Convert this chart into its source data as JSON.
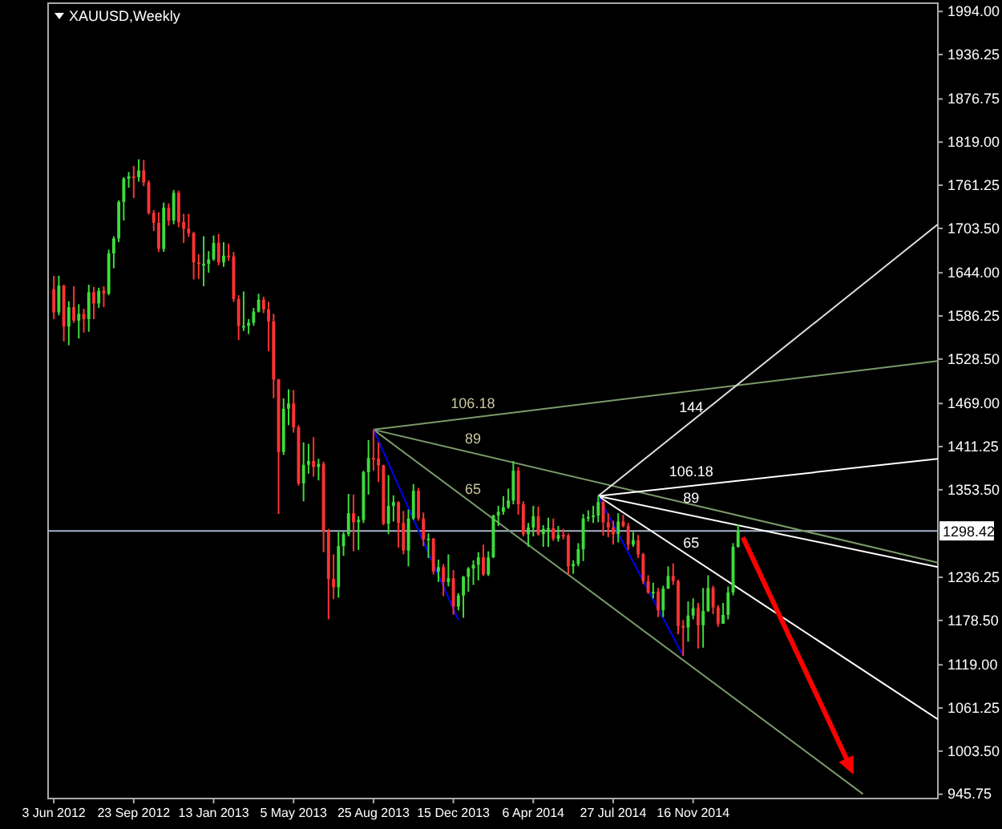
{
  "chart_data": {
    "type": "candlestick",
    "title": "XAUUSD,Weekly",
    "x": [
      "2012-06-03",
      "2012-06-10",
      "2012-06-17",
      "2012-06-24",
      "2012-07-01",
      "2012-07-08",
      "2012-07-15",
      "2012-07-22",
      "2012-07-29",
      "2012-08-05",
      "2012-08-12",
      "2012-08-19",
      "2012-08-26",
      "2012-09-02",
      "2012-09-09",
      "2012-09-16",
      "2012-09-23",
      "2012-09-30",
      "2012-10-07",
      "2012-10-14",
      "2012-10-21",
      "2012-10-28",
      "2012-11-04",
      "2012-11-11",
      "2012-11-18",
      "2012-11-25",
      "2012-12-02",
      "2012-12-09",
      "2012-12-16",
      "2012-12-23",
      "2012-12-30",
      "2013-01-06",
      "2013-01-13",
      "2013-01-20",
      "2013-01-27",
      "2013-02-03",
      "2013-02-10",
      "2013-02-17",
      "2013-02-24",
      "2013-03-03",
      "2013-03-10",
      "2013-03-17",
      "2013-03-24",
      "2013-03-31",
      "2013-04-07",
      "2013-04-14",
      "2013-04-21",
      "2013-04-28",
      "2013-05-05",
      "2013-05-12",
      "2013-05-19",
      "2013-05-26",
      "2013-06-02",
      "2013-06-09",
      "2013-06-16",
      "2013-06-23",
      "2013-06-30",
      "2013-07-07",
      "2013-07-14",
      "2013-07-21",
      "2013-07-28",
      "2013-08-04",
      "2013-08-11",
      "2013-08-18",
      "2013-08-25",
      "2013-09-01",
      "2013-09-08",
      "2013-09-15",
      "2013-09-22",
      "2013-09-29",
      "2013-10-06",
      "2013-10-13",
      "2013-10-20",
      "2013-10-27",
      "2013-11-03",
      "2013-11-10",
      "2013-11-17",
      "2013-11-24",
      "2013-12-01",
      "2013-12-08",
      "2013-12-15",
      "2013-12-22",
      "2013-12-29",
      "2014-01-05",
      "2014-01-12",
      "2014-01-19",
      "2014-01-26",
      "2014-02-02",
      "2014-02-09",
      "2014-02-16",
      "2014-02-23",
      "2014-03-02",
      "2014-03-09",
      "2014-03-16",
      "2014-03-23",
      "2014-03-30",
      "2014-04-06",
      "2014-04-13",
      "2014-04-20",
      "2014-04-27",
      "2014-05-04",
      "2014-05-11",
      "2014-05-18",
      "2014-05-25",
      "2014-06-01",
      "2014-06-08",
      "2014-06-15",
      "2014-06-22",
      "2014-06-29",
      "2014-07-06",
      "2014-07-13",
      "2014-07-20",
      "2014-07-27",
      "2014-08-03",
      "2014-08-10",
      "2014-08-17",
      "2014-08-24",
      "2014-08-31",
      "2014-09-07",
      "2014-09-14",
      "2014-09-21",
      "2014-09-28",
      "2014-10-05",
      "2014-10-12",
      "2014-10-19",
      "2014-10-26",
      "2014-11-02",
      "2014-11-09",
      "2014-11-16",
      "2014-11-23",
      "2014-11-30",
      "2014-12-07",
      "2014-12-14",
      "2014-12-21",
      "2014-12-28",
      "2015-01-04",
      "2015-01-11",
      "2015-01-18"
    ],
    "ohlc": [
      [
        1622,
        1640,
        1582,
        1591
      ],
      [
        1591,
        1640,
        1587,
        1627
      ],
      [
        1627,
        1628,
        1552,
        1572
      ],
      [
        1572,
        1606,
        1547,
        1598
      ],
      [
        1598,
        1626,
        1577,
        1580
      ],
      [
        1580,
        1602,
        1556,
        1589
      ],
      [
        1589,
        1596,
        1564,
        1582
      ],
      [
        1582,
        1628,
        1565,
        1618
      ],
      [
        1618,
        1625,
        1582,
        1603
      ],
      [
        1603,
        1624,
        1597,
        1620
      ],
      [
        1620,
        1626,
        1598,
        1616
      ],
      [
        1616,
        1675,
        1614,
        1670
      ],
      [
        1670,
        1693,
        1650,
        1690
      ],
      [
        1690,
        1741,
        1685,
        1739
      ],
      [
        1739,
        1772,
        1714,
        1770
      ],
      [
        1770,
        1779,
        1758,
        1773
      ],
      [
        1773,
        1787,
        1744,
        1772
      ],
      [
        1772,
        1796,
        1766,
        1781
      ],
      [
        1781,
        1795,
        1760,
        1765
      ],
      [
        1765,
        1768,
        1722,
        1724
      ],
      [
        1724,
        1728,
        1700,
        1711
      ],
      [
        1711,
        1725,
        1672,
        1676
      ],
      [
        1676,
        1738,
        1672,
        1731
      ],
      [
        1731,
        1737,
        1707,
        1714
      ],
      [
        1714,
        1755,
        1709,
        1751
      ],
      [
        1751,
        1754,
        1705,
        1712
      ],
      [
        1712,
        1723,
        1684,
        1703
      ],
      [
        1703,
        1723,
        1692,
        1697
      ],
      [
        1697,
        1699,
        1635,
        1658
      ],
      [
        1658,
        1669,
        1636,
        1656
      ],
      [
        1656,
        1693,
        1626,
        1656
      ],
      [
        1656,
        1673,
        1644,
        1662
      ],
      [
        1662,
        1694,
        1660,
        1684
      ],
      [
        1684,
        1696,
        1654,
        1658
      ],
      [
        1658,
        1685,
        1652,
        1667
      ],
      [
        1667,
        1683,
        1660,
        1666
      ],
      [
        1666,
        1672,
        1605,
        1609
      ],
      [
        1609,
        1614,
        1554,
        1573
      ],
      [
        1573,
        1619,
        1566,
        1573
      ],
      [
        1573,
        1582,
        1562,
        1577
      ],
      [
        1577,
        1597,
        1573,
        1592
      ],
      [
        1592,
        1616,
        1591,
        1608
      ],
      [
        1608,
        1612,
        1590,
        1595
      ],
      [
        1595,
        1605,
        1539,
        1579
      ],
      [
        1579,
        1589,
        1476,
        1501
      ],
      [
        1501,
        1502,
        1321,
        1404
      ],
      [
        1404,
        1476,
        1400,
        1462
      ],
      [
        1462,
        1488,
        1440,
        1469
      ],
      [
        1469,
        1487,
        1430,
        1437
      ],
      [
        1437,
        1440,
        1359,
        1362
      ],
      [
        1362,
        1417,
        1338,
        1387
      ],
      [
        1387,
        1415,
        1375,
        1392
      ],
      [
        1392,
        1424,
        1371,
        1384
      ],
      [
        1384,
        1395,
        1366,
        1388
      ],
      [
        1388,
        1391,
        1270,
        1298
      ],
      [
        1298,
        1301,
        1180,
        1234
      ],
      [
        1234,
        1267,
        1207,
        1223
      ],
      [
        1223,
        1297,
        1209,
        1278
      ],
      [
        1278,
        1297,
        1265,
        1294
      ],
      [
        1294,
        1348,
        1291,
        1322
      ],
      [
        1322,
        1347,
        1271,
        1310
      ],
      [
        1310,
        1318,
        1273,
        1313
      ],
      [
        1313,
        1379,
        1309,
        1377
      ],
      [
        1377,
        1420,
        1347,
        1396
      ],
      [
        1396,
        1434,
        1379,
        1395
      ],
      [
        1395,
        1417,
        1364,
        1386
      ],
      [
        1386,
        1387,
        1306,
        1308
      ],
      [
        1308,
        1373,
        1294,
        1332
      ],
      [
        1332,
        1346,
        1311,
        1337
      ],
      [
        1337,
        1338,
        1276,
        1309
      ],
      [
        1309,
        1325,
        1267,
        1272
      ],
      [
        1272,
        1327,
        1251,
        1315
      ],
      [
        1315,
        1361,
        1313,
        1352
      ],
      [
        1352,
        1356,
        1312,
        1315
      ],
      [
        1315,
        1323,
        1278,
        1287
      ],
      [
        1287,
        1295,
        1262,
        1288
      ],
      [
        1288,
        1289,
        1240,
        1244
      ],
      [
        1244,
        1260,
        1230,
        1250
      ],
      [
        1250,
        1254,
        1211,
        1230
      ],
      [
        1230,
        1267,
        1224,
        1235
      ],
      [
        1235,
        1246,
        1186,
        1197
      ],
      [
        1197,
        1215,
        1192,
        1212
      ],
      [
        1212,
        1238,
        1182,
        1237
      ],
      [
        1237,
        1250,
        1217,
        1248
      ],
      [
        1248,
        1259,
        1226,
        1253
      ],
      [
        1253,
        1270,
        1232,
        1263
      ],
      [
        1263,
        1280,
        1238,
        1240
      ],
      [
        1240,
        1271,
        1238,
        1263
      ],
      [
        1263,
        1320,
        1262,
        1319
      ],
      [
        1319,
        1332,
        1305,
        1324
      ],
      [
        1324,
        1345,
        1320,
        1330
      ],
      [
        1330,
        1355,
        1328,
        1339
      ],
      [
        1339,
        1392,
        1334,
        1379
      ],
      [
        1379,
        1384,
        1320,
        1334
      ],
      [
        1334,
        1338,
        1291,
        1294
      ],
      [
        1294,
        1309,
        1277,
        1303
      ],
      [
        1303,
        1332,
        1291,
        1318
      ],
      [
        1318,
        1331,
        1292,
        1294
      ],
      [
        1294,
        1306,
        1277,
        1301
      ],
      [
        1301,
        1316,
        1277,
        1302
      ],
      [
        1302,
        1315,
        1285,
        1288
      ],
      [
        1288,
        1305,
        1284,
        1293
      ],
      [
        1293,
        1301,
        1287,
        1292
      ],
      [
        1292,
        1295,
        1240,
        1251
      ],
      [
        1251,
        1259,
        1241,
        1254
      ],
      [
        1254,
        1282,
        1251,
        1274
      ],
      [
        1274,
        1321,
        1258,
        1315
      ],
      [
        1315,
        1326,
        1311,
        1317
      ],
      [
        1317,
        1332,
        1309,
        1319
      ],
      [
        1319,
        1345,
        1310,
        1337
      ],
      [
        1337,
        1339,
        1292,
        1310
      ],
      [
        1310,
        1322,
        1290,
        1303
      ],
      [
        1303,
        1312,
        1280,
        1294
      ],
      [
        1294,
        1322,
        1283,
        1311
      ],
      [
        1311,
        1320,
        1303,
        1305
      ],
      [
        1305,
        1309,
        1273,
        1280
      ],
      [
        1280,
        1297,
        1277,
        1286
      ],
      [
        1286,
        1293,
        1262,
        1267
      ],
      [
        1267,
        1269,
        1227,
        1231
      ],
      [
        1231,
        1239,
        1214,
        1216
      ],
      [
        1216,
        1229,
        1208,
        1217
      ],
      [
        1217,
        1222,
        1183,
        1192
      ],
      [
        1192,
        1225,
        1183,
        1221
      ],
      [
        1221,
        1251,
        1221,
        1238
      ],
      [
        1238,
        1255,
        1226,
        1231
      ],
      [
        1231,
        1233,
        1160,
        1171
      ],
      [
        1171,
        1179,
        1131,
        1169
      ],
      [
        1169,
        1204,
        1150,
        1185
      ],
      [
        1185,
        1208,
        1180,
        1195
      ],
      [
        1195,
        1202,
        1141,
        1172
      ],
      [
        1172,
        1222,
        1142,
        1191
      ],
      [
        1191,
        1239,
        1190,
        1222
      ],
      [
        1222,
        1225,
        1187,
        1196
      ],
      [
        1196,
        1199,
        1170,
        1174
      ],
      [
        1174,
        1202,
        1174,
        1186
      ],
      [
        1186,
        1224,
        1180,
        1216
      ],
      [
        1216,
        1282,
        1212,
        1277
      ],
      [
        1277,
        1307,
        1276,
        1298.42
      ]
    ],
    "series": [
      {
        "type": "line",
        "color": "#7a9a68",
        "x": [
          "2013-08-25",
          "2015-10-25"
        ],
        "values": [
          1434,
          1526
        ]
      },
      {
        "type": "line",
        "color": "#7a9a68",
        "x": [
          "2013-08-25",
          "2015-10-25"
        ],
        "values": [
          1434,
          1256
        ]
      },
      {
        "type": "line",
        "color": "#7a9a68",
        "x": [
          "2013-08-25",
          "2015-07-12"
        ],
        "values": [
          1434,
          946
        ]
      },
      {
        "type": "line",
        "color": "#e0e0e0",
        "x": [
          "2014-07-06",
          "2015-10-25"
        ],
        "values": [
          1345,
          1709
        ]
      },
      {
        "type": "line",
        "color": "#ffffff",
        "x": [
          "2014-07-06",
          "2015-10-25"
        ],
        "values": [
          1345,
          1395
        ]
      },
      {
        "type": "line",
        "color": "#ffffff",
        "x": [
          "2014-07-06",
          "2015-10-25"
        ],
        "values": [
          1345,
          1250
        ]
      },
      {
        "type": "line",
        "color": "#ffffff",
        "x": [
          "2014-07-06",
          "2015-10-25"
        ],
        "values": [
          1345,
          1046
        ]
      },
      {
        "type": "line",
        "color": "#0000ff",
        "x": [
          "2013-08-25",
          "2013-12-22"
        ],
        "values": [
          1434,
          1179
        ]
      },
      {
        "type": "line",
        "color": "#0000ff",
        "x": [
          "2014-07-06",
          "2014-11-02"
        ],
        "values": [
          1345,
          1131
        ]
      }
    ],
    "annotations": [
      "106.18",
      "89",
      "65",
      "144",
      "106.18",
      "89",
      "65"
    ],
    "ref_lines": [
      {
        "axis": "y",
        "value": 1298.42,
        "label": "1298.42",
        "color": "#a6b4c8"
      }
    ],
    "xlim": [
      "2012-05-26",
      "2015-10-25"
    ],
    "xticks": [
      {
        "value": "2012-06-03",
        "label": "3 Jun 2012"
      },
      {
        "value": "2012-09-23",
        "label": "23 Sep 2012"
      },
      {
        "value": "2013-01-13",
        "label": "13 Jan 2013"
      },
      {
        "value": "2013-05-05",
        "label": "5 May 2013"
      },
      {
        "value": "2013-08-25",
        "label": "25 Aug 2013"
      },
      {
        "value": "2013-12-15",
        "label": "15 Dec 2013"
      },
      {
        "value": "2014-04-06",
        "label": "6 Apr 2014"
      },
      {
        "value": "2014-07-27",
        "label": "27 Jul 2014"
      },
      {
        "value": "2014-11-16",
        "label": "16 Nov 2014"
      }
    ],
    "ylim": [
      940,
      2005
    ],
    "yticks": [
      {
        "value": 1994,
        "label": "1994.00"
      },
      {
        "value": 1936.25,
        "label": "1936.25"
      },
      {
        "value": 1876.75,
        "label": "1876.75"
      },
      {
        "value": 1819,
        "label": "1819.00"
      },
      {
        "value": 1761.25,
        "label": "1761.25"
      },
      {
        "value": 1703.5,
        "label": "1703.50"
      },
      {
        "value": 1644,
        "label": "1644.00"
      },
      {
        "value": 1586.25,
        "label": "1586.25"
      },
      {
        "value": 1528.5,
        "label": "1528.50"
      },
      {
        "value": 1469,
        "label": "1469.00"
      },
      {
        "value": 1411.25,
        "label": "1411.25"
      },
      {
        "value": 1353.5,
        "label": "1353.50"
      },
      {
        "value": 1236.25,
        "label": "1236.25"
      },
      {
        "value": 1178.5,
        "label": "1178.50"
      },
      {
        "value": 1119,
        "label": "1119.00"
      },
      {
        "value": 1061.25,
        "label": "1061.25"
      },
      {
        "value": 1003.5,
        "label": "1003.50"
      },
      {
        "value": 945.75,
        "label": "945.75"
      }
    ],
    "grid": false
  }
}
